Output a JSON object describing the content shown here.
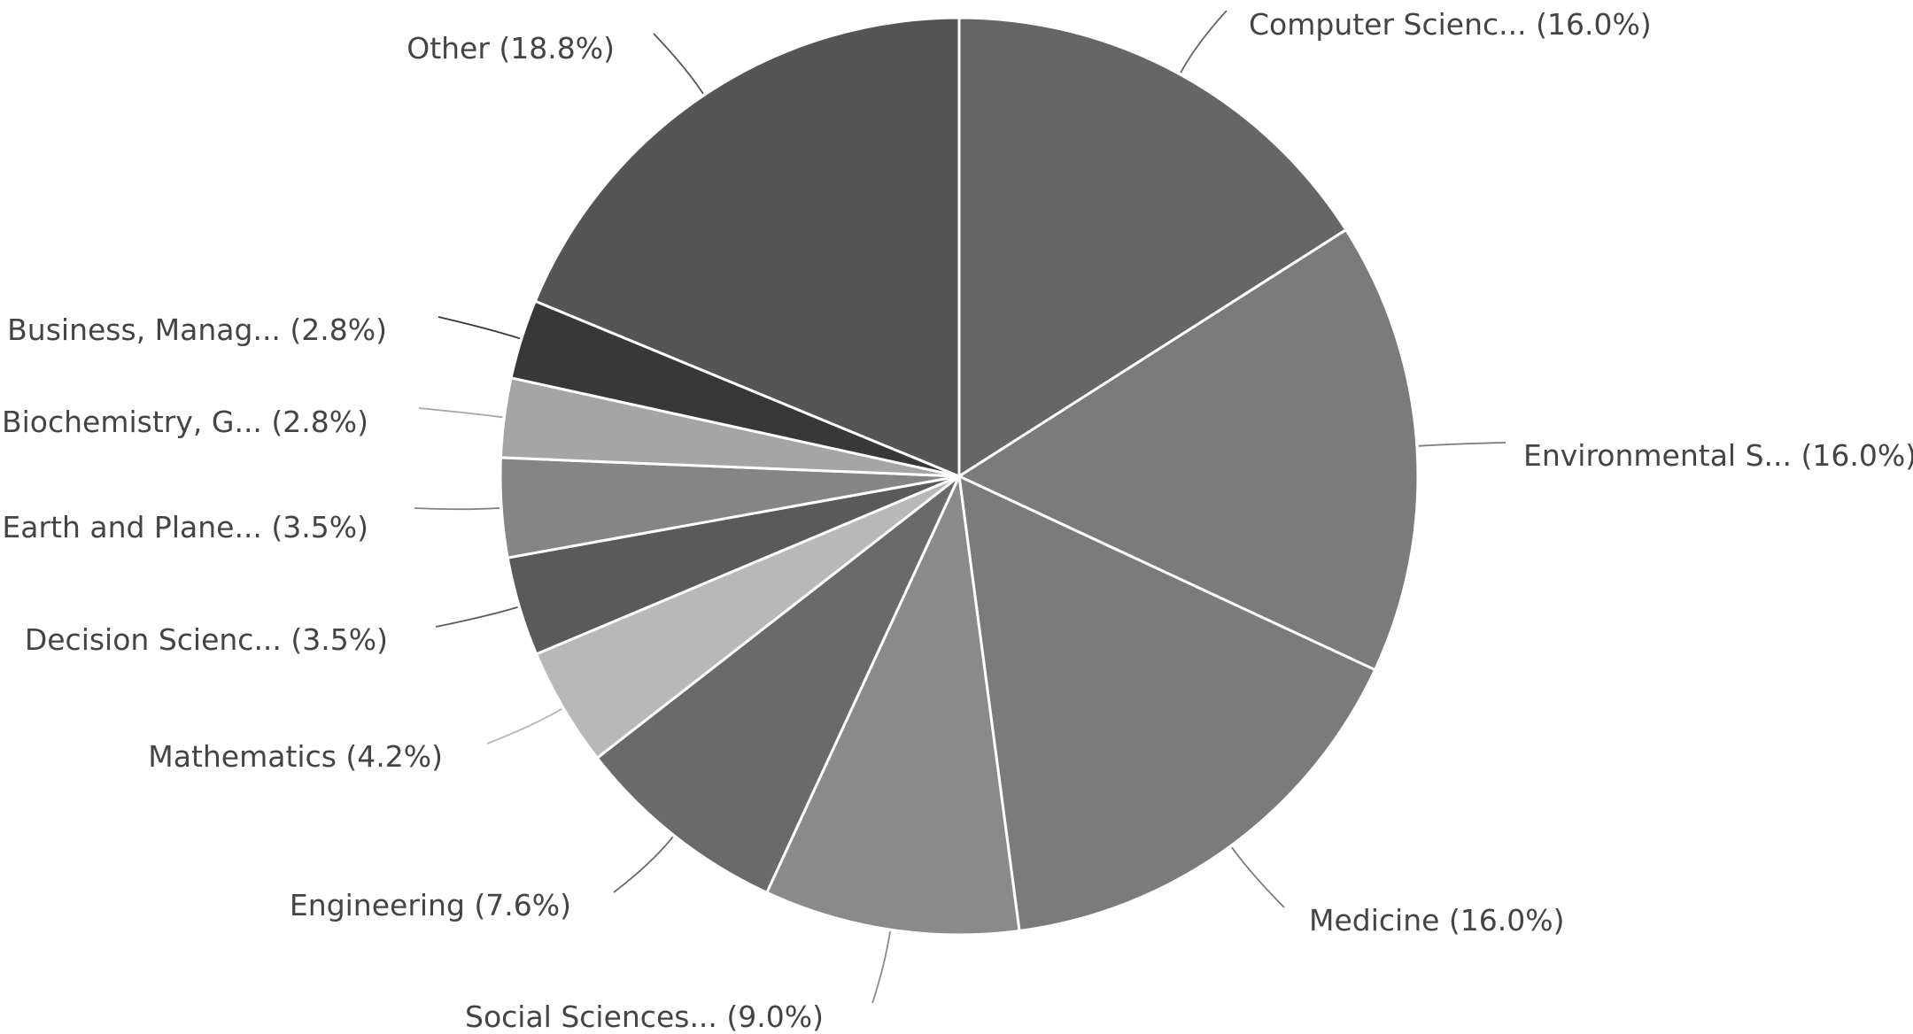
{
  "chart_data": {
    "type": "pie",
    "slices": [
      {
        "label": "Computer Scienc... (16.0%)",
        "value": 16.0,
        "color": "#666666"
      },
      {
        "label": "Environmental S... (16.0%)",
        "value": 16.0,
        "color": "#7b7b7b"
      },
      {
        "label": "Medicine (16.0%)",
        "value": 16.0,
        "color": "#7b7b7b"
      },
      {
        "label": "Social Sciences... (9.0%)",
        "value": 9.0,
        "color": "#8a8a8a"
      },
      {
        "label": "Engineering (7.6%)",
        "value": 7.6,
        "color": "#6a6a6a"
      },
      {
        "label": "Mathematics (4.2%)",
        "value": 4.2,
        "color": "#b8b8b8"
      },
      {
        "label": "Decision Scienc... (3.5%)",
        "value": 3.5,
        "color": "#5a5a5a"
      },
      {
        "label": "Earth and Plane... (3.5%)",
        "value": 3.5,
        "color": "#858585"
      },
      {
        "label": "Biochemistry, G... (2.8%)",
        "value": 2.8,
        "color": "#a5a5a5"
      },
      {
        "label": "Business, Manag... (2.8%)",
        "value": 2.8,
        "color": "#383838"
      },
      {
        "label": "Other (18.8%)",
        "value": 18.8,
        "color": "#555555"
      }
    ],
    "start_angle": "12 o'clock",
    "direction": "clockwise",
    "legend": "none"
  }
}
